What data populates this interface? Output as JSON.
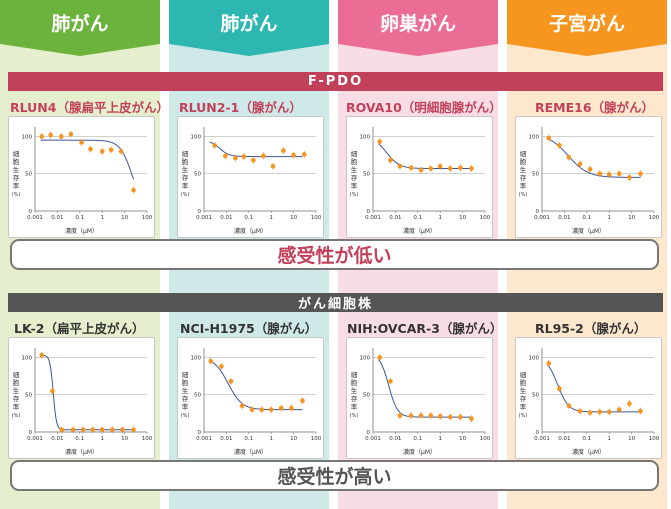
{
  "columns": [
    {
      "title": "肺がん",
      "color": "#6cb33e",
      "bg": "#e6efcd"
    },
    {
      "title": "肺がん",
      "color": "#2eb6b0",
      "bg": "#cfe9e8"
    },
    {
      "title": "卵巣がん",
      "color": "#ec6d93",
      "bg": "#f9dde6"
    },
    {
      "title": "子宮がん",
      "color": "#f7961e",
      "bg": "#fde7cd"
    }
  ],
  "band_fpdo": "F-PDO",
  "band_cell": "がん細胞株",
  "band_fpdo_color": "#c2415a",
  "band_cell_color": "#555555",
  "sensitivity_low": "感受性が低い",
  "sensitivity_high": "感受性が高い",
  "sensitivity_low_color": "#c2415a",
  "sensitivity_high_color": "#555555",
  "axis_ylabel": "細胞生存率",
  "axis_yunit": "(%)",
  "axis_xlabel": "濃度（μM）",
  "xticks": [
    "0.001",
    "0.01",
    "0.1",
    "1",
    "10",
    "100"
  ],
  "yticks": [
    "0",
    "50",
    "100"
  ],
  "chart_data": [
    {
      "type": "scatter",
      "title": "RLUN4（腺扁平上皮がん）",
      "xlabel": "濃度（μM）",
      "ylabel": "細胞生存率 (%)",
      "x_scale": "log",
      "xlim": [
        0.001,
        100
      ],
      "ylim": [
        0,
        110
      ],
      "x": [
        0.002,
        0.005,
        0.015,
        0.04,
        0.12,
        0.3,
        1.0,
        2.5,
        7.0,
        25.0
      ],
      "y": [
        100,
        102,
        100,
        103,
        92,
        83,
        80,
        82,
        80,
        28
      ],
      "fit": {
        "top": 95,
        "bottom": 0,
        "ec50": 22,
        "hill": 1.6
      }
    },
    {
      "type": "scatter",
      "title": "RLUN2-1（腺がん）",
      "xlabel": "濃度（μM）",
      "ylabel": "細胞生存率 (%)",
      "x_scale": "log",
      "xlim": [
        0.001,
        100
      ],
      "ylim": [
        0,
        110
      ],
      "x": [
        0.003,
        0.009,
        0.025,
        0.06,
        0.16,
        0.45,
        1.2,
        3.5,
        10.0,
        30.0
      ],
      "y": [
        88,
        74,
        71,
        73,
        68,
        74,
        60,
        81,
        75,
        76
      ],
      "fit": {
        "top": 95,
        "bottom": 73,
        "ec50": 0.005,
        "hill": 2.0
      }
    },
    {
      "type": "scatter",
      "title": "ROVA10（明細胞腺がん）",
      "xlabel": "濃度（μM）",
      "ylabel": "細胞生存率 (%)",
      "x_scale": "log",
      "xlim": [
        0.001,
        100
      ],
      "ylim": [
        0,
        110
      ],
      "x": [
        0.002,
        0.006,
        0.016,
        0.05,
        0.14,
        0.38,
        1.0,
        2.8,
        8.0,
        25.0
      ],
      "y": [
        93,
        68,
        60,
        58,
        55,
        57,
        60,
        57,
        58,
        57
      ],
      "fit": {
        "top": 100,
        "bottom": 57,
        "ec50": 0.004,
        "hill": 1.5
      }
    },
    {
      "type": "scatter",
      "title": "REME16（腺がん）",
      "xlabel": "濃度（μM）",
      "ylabel": "細胞生存率 (%)",
      "x_scale": "log",
      "xlim": [
        0.001,
        100
      ],
      "ylim": [
        0,
        110
      ],
      "x": [
        0.002,
        0.006,
        0.016,
        0.05,
        0.14,
        0.38,
        1.0,
        2.8,
        8.0,
        25.0
      ],
      "y": [
        98,
        88,
        72,
        63,
        56,
        50,
        49,
        50,
        45,
        50
      ],
      "fit": {
        "top": 103,
        "bottom": 45,
        "ec50": 0.015,
        "hill": 1.0
      }
    },
    {
      "type": "scatter",
      "title": "LK-2（扁平上皮がん）",
      "xlabel": "濃度（μM）",
      "ylabel": "細胞生存率 (%)",
      "x_scale": "log",
      "xlim": [
        0.001,
        100
      ],
      "ylim": [
        0,
        110
      ],
      "x": [
        0.002,
        0.006,
        0.016,
        0.05,
        0.14,
        0.38,
        1.0,
        2.8,
        8.0,
        25.0
      ],
      "y": [
        103,
        55,
        3,
        3,
        3,
        3,
        3,
        3,
        3,
        3
      ],
      "fit": {
        "top": 103,
        "bottom": 3,
        "ec50": 0.0065,
        "hill": 6.0
      }
    },
    {
      "type": "scatter",
      "title": "NCI-H1975（腺がん）",
      "xlabel": "濃度（μM）",
      "ylabel": "細胞生存率 (%)",
      "x_scale": "log",
      "xlim": [
        0.001,
        100
      ],
      "ylim": [
        0,
        110
      ],
      "x": [
        0.002,
        0.006,
        0.016,
        0.05,
        0.14,
        0.38,
        1.0,
        2.8,
        8.0,
        25.0
      ],
      "y": [
        95,
        88,
        68,
        35,
        30,
        30,
        30,
        32,
        32,
        42
      ],
      "fit": {
        "top": 100,
        "bottom": 30,
        "ec50": 0.012,
        "hill": 1.4
      }
    },
    {
      "type": "scatter",
      "title": "NIH:OVCAR-3（腺がん）",
      "xlabel": "濃度（μM）",
      "ylabel": "細胞生存率 (%)",
      "x_scale": "log",
      "xlim": [
        0.001,
        100
      ],
      "ylim": [
        0,
        110
      ],
      "x": [
        0.002,
        0.006,
        0.016,
        0.05,
        0.14,
        0.38,
        1.0,
        2.8,
        8.0,
        25.0
      ],
      "y": [
        100,
        68,
        22,
        22,
        22,
        22,
        21,
        20,
        20,
        18
      ],
      "fit": {
        "top": 105,
        "bottom": 20,
        "ec50": 0.005,
        "hill": 2.2
      }
    },
    {
      "type": "scatter",
      "title": "RL95-2（腺がん）",
      "xlabel": "濃度（μM）",
      "ylabel": "細胞生存率 (%)",
      "x_scale": "log",
      "xlim": [
        0.001,
        100
      ],
      "ylim": [
        0,
        110
      ],
      "x": [
        0.002,
        0.006,
        0.016,
        0.05,
        0.14,
        0.38,
        1.0,
        2.8,
        8.0,
        25.0
      ],
      "y": [
        92,
        58,
        35,
        28,
        26,
        27,
        27,
        30,
        38,
        28
      ],
      "fit": {
        "top": 100,
        "bottom": 27,
        "ec50": 0.005,
        "hill": 1.8
      }
    }
  ]
}
